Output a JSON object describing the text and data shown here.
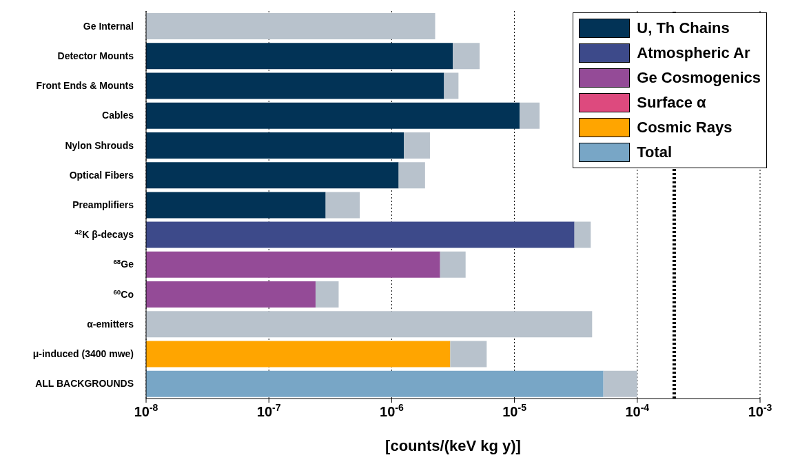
{
  "chart_data": {
    "type": "bar",
    "orientation": "horizontal",
    "log": "x",
    "xlabel": "[counts/(keV kg y)]",
    "categories": [
      "Ge Internal",
      "Detector Mounts",
      "Front Ends & Mounts",
      "Cables",
      "Nylon Shrouds",
      "Optical Fibers",
      "Preamplifiers",
      "$^{42}$K  β-decays",
      "$^{68}$Ge",
      "$^{60}$Co",
      "α-emitters",
      "μ-induced (3400 mwe)",
      "ALL BACKGROUNDS"
    ],
    "series": [
      {
        "name": "U, Th Chains",
        "color": "#023356",
        "values": [
          null,
          3.15e-06,
          2.67e-06,
          1.1e-05,
          1.26e-06,
          1.14e-06,
          2.9e-07,
          null,
          null,
          null,
          null,
          null,
          null
        ]
      },
      {
        "name": "Atmospheric Ar",
        "color": "#3d4a8a",
        "values": [
          null,
          null,
          null,
          null,
          null,
          null,
          null,
          3.08e-05,
          null,
          null,
          null,
          null,
          null
        ]
      },
      {
        "name": "Ge Cosmogenics",
        "color": "#944b97",
        "values": [
          null,
          null,
          null,
          null,
          null,
          null,
          null,
          null,
          2.48e-06,
          2.4e-07,
          null,
          null,
          null
        ]
      },
      {
        "name": "Surface α",
        "color": "#dd4a7e",
        "values": [
          null,
          null,
          null,
          null,
          null,
          null,
          null,
          null,
          null,
          null,
          null,
          null,
          null
        ]
      },
      {
        "name": "Cosmic Rays",
        "color": "#ffa500",
        "values": [
          null,
          null,
          null,
          null,
          null,
          null,
          null,
          null,
          null,
          null,
          null,
          3e-06,
          null
        ]
      },
      {
        "name": "Total",
        "color": "#78a6c6",
        "values": [
          null,
          null,
          null,
          null,
          null,
          null,
          null,
          null,
          null,
          null,
          null,
          null,
          5.3e-05
        ]
      },
      {
        "color": "#b8c2cc",
        "values": [
          2.26e-06,
          2.05e-06,
          8.3e-07,
          5e-06,
          7.9e-07,
          7.3e-07,
          2.6e-07,
          1.1e-05,
          1.52e-06,
          1.3e-07,
          4.29e-05,
          2.94e-06,
          4.7e-05
        ]
      }
    ],
    "xlim": [
      1e-08,
      0.001
    ],
    "xticks": [
      {
        "value": 1e-08,
        "label": "10$^{-8}$"
      },
      {
        "value": 1e-07,
        "label": "10$^{-7}$"
      },
      {
        "value": 1e-06,
        "label": "10$^{-6}$"
      },
      {
        "value": 1e-05,
        "label": "10$^{-5}$"
      },
      {
        "value": 0.0001,
        "label": "10$^{-4}$"
      },
      {
        "value": 0.001,
        "label": "10$^{-3}$"
      }
    ],
    "ref_lines": [
      {
        "axis": "x",
        "value": 0.0002,
        "line_style": "dotted",
        "color": "#000000"
      }
    ],
    "grid": "x",
    "legend": "top right",
    "stacked": true
  }
}
